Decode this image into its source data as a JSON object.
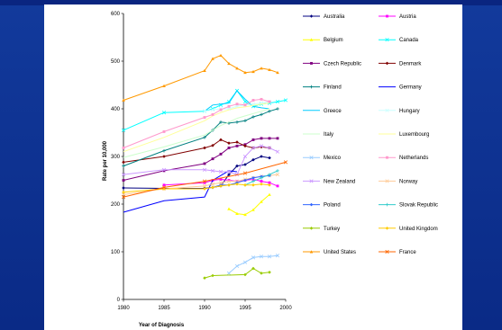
{
  "chart_data": {
    "type": "line",
    "title": "",
    "xlabel": "Year of Diagnosis",
    "ylabel": "Rate per 10,000",
    "xlim": [
      1980,
      2000
    ],
    "ylim": [
      0,
      600
    ],
    "x_ticks": [
      "1980",
      "1985",
      "1990",
      "1995",
      "2000"
    ],
    "y_ticks": [
      "0",
      "100",
      "200",
      "300",
      "400",
      "500",
      "600"
    ],
    "grid": false,
    "legend_position": "right",
    "series": [
      {
        "name": "Australia",
        "color": "#000080",
        "marker": "diamond",
        "points": [
          [
            1980,
            234
          ],
          [
            1985,
            233
          ],
          [
            1990,
            233
          ],
          [
            1991,
            235
          ],
          [
            1992,
            238
          ],
          [
            1993,
            262
          ],
          [
            1994,
            280
          ],
          [
            1995,
            283
          ],
          [
            1996,
            293
          ],
          [
            1997,
            300
          ],
          [
            1998,
            297
          ]
        ]
      },
      {
        "name": "Austria",
        "color": "#ff00ff",
        "marker": "square",
        "points": [
          [
            1985,
            240
          ],
          [
            1990,
            245
          ],
          [
            1991,
            250
          ],
          [
            1992,
            252
          ],
          [
            1993,
            250
          ],
          [
            1994,
            248
          ],
          [
            1995,
            250
          ],
          [
            1996,
            252
          ],
          [
            1997,
            248
          ],
          [
            1998,
            245
          ],
          [
            1999,
            238
          ]
        ]
      },
      {
        "name": "Belgium",
        "color": "#ffff00",
        "marker": "triangle",
        "points": [
          [
            1993,
            190
          ],
          [
            1994,
            180
          ],
          [
            1995,
            178
          ],
          [
            1996,
            188
          ],
          [
            1997,
            205
          ],
          [
            1998,
            220
          ]
        ]
      },
      {
        "name": "Canada",
        "color": "#00ffff",
        "marker": "x",
        "points": [
          [
            1980,
            355
          ],
          [
            1985,
            392
          ],
          [
            1990,
            395
          ],
          [
            1991,
            400
          ],
          [
            1992,
            408
          ],
          [
            1993,
            415
          ],
          [
            1994,
            438
          ],
          [
            1995,
            415
          ],
          [
            1996,
            405
          ],
          [
            1997,
            410
          ],
          [
            1998,
            412
          ],
          [
            1999,
            415
          ],
          [
            2000,
            418
          ]
        ]
      },
      {
        "name": "Czech Republic",
        "color": "#800080",
        "marker": "square",
        "points": [
          [
            1980,
            250
          ],
          [
            1985,
            270
          ],
          [
            1990,
            285
          ],
          [
            1991,
            295
          ],
          [
            1992,
            305
          ],
          [
            1993,
            318
          ],
          [
            1994,
            322
          ],
          [
            1995,
            325
          ],
          [
            1996,
            335
          ],
          [
            1997,
            338
          ],
          [
            1998,
            338
          ],
          [
            1999,
            338
          ]
        ]
      },
      {
        "name": "Denmark",
        "color": "#800000",
        "marker": "diamond",
        "points": [
          [
            1980,
            288
          ],
          [
            1985,
            300
          ],
          [
            1990,
            318
          ],
          [
            1991,
            323
          ],
          [
            1992,
            335
          ],
          [
            1993,
            328
          ],
          [
            1994,
            330
          ],
          [
            1995,
            322
          ],
          [
            1996,
            318
          ],
          [
            1997,
            320
          ],
          [
            1998,
            318
          ]
        ]
      },
      {
        "name": "Finland",
        "color": "#008080",
        "marker": "plus",
        "points": [
          [
            1980,
            280
          ],
          [
            1985,
            312
          ],
          [
            1990,
            340
          ],
          [
            1991,
            355
          ],
          [
            1992,
            372
          ],
          [
            1993,
            370
          ],
          [
            1994,
            372
          ],
          [
            1995,
            375
          ],
          [
            1996,
            383
          ],
          [
            1997,
            388
          ],
          [
            1998,
            395
          ],
          [
            1999,
            400
          ]
        ]
      },
      {
        "name": "Germany",
        "color": "#0000ff",
        "marker": "none",
        "points": [
          [
            1980,
            183
          ],
          [
            1985,
            207
          ],
          [
            1990,
            215
          ],
          [
            1991,
            250
          ],
          [
            1992,
            260
          ],
          [
            1993,
            270
          ],
          [
            1994,
            268
          ]
        ]
      },
      {
        "name": "Greece",
        "color": "#00ccff",
        "marker": "none",
        "points": [
          [
            1990,
            395
          ],
          [
            1991,
            408
          ],
          [
            1992,
            410
          ],
          [
            1993,
            412
          ],
          [
            1994,
            438
          ],
          [
            1995,
            420
          ],
          [
            1996,
            405
          ],
          [
            1997,
            402
          ],
          [
            1998,
            400
          ]
        ]
      },
      {
        "name": "Hungary",
        "color": "#ccffff",
        "marker": "x",
        "points": [
          [
            1990,
            395
          ],
          [
            1991,
            398
          ],
          [
            1992,
            400
          ],
          [
            1993,
            400
          ],
          [
            1994,
            405
          ],
          [
            1995,
            408
          ],
          [
            1996,
            410
          ],
          [
            1997,
            412
          ],
          [
            1998,
            415
          ]
        ]
      },
      {
        "name": "Italy",
        "color": "#ccffcc",
        "marker": "none",
        "points": [
          [
            1980,
            298
          ],
          [
            1985,
            320
          ],
          [
            1990,
            345
          ],
          [
            1991,
            355
          ],
          [
            1992,
            365
          ],
          [
            1993,
            372
          ],
          [
            1994,
            380
          ],
          [
            1995,
            385
          ],
          [
            1996,
            390
          ],
          [
            1997,
            395
          ],
          [
            1998,
            400
          ]
        ]
      },
      {
        "name": "Luxembourg",
        "color": "#ffff99",
        "marker": "none",
        "points": [
          [
            1980,
            310
          ],
          [
            1985,
            340
          ],
          [
            1990,
            375
          ],
          [
            1991,
            385
          ],
          [
            1992,
            392
          ],
          [
            1993,
            398
          ],
          [
            1994,
            402
          ],
          [
            1995,
            404
          ],
          [
            1996,
            407
          ],
          [
            1997,
            410
          ],
          [
            1998,
            412
          ]
        ]
      },
      {
        "name": "Mexico",
        "color": "#99ccff",
        "marker": "x",
        "points": [
          [
            1993,
            55
          ],
          [
            1994,
            70
          ],
          [
            1995,
            78
          ],
          [
            1996,
            88
          ],
          [
            1997,
            90
          ],
          [
            1998,
            90
          ],
          [
            1999,
            92
          ]
        ]
      },
      {
        "name": "Netherlands",
        "color": "#ff99cc",
        "marker": "square",
        "points": [
          [
            1980,
            318
          ],
          [
            1985,
            352
          ],
          [
            1990,
            382
          ],
          [
            1991,
            388
          ],
          [
            1992,
            398
          ],
          [
            1993,
            405
          ],
          [
            1994,
            410
          ],
          [
            1995,
            408
          ],
          [
            1996,
            418
          ],
          [
            1997,
            420
          ],
          [
            1998,
            415
          ]
        ]
      },
      {
        "name": "New Zealand",
        "color": "#cc99ff",
        "marker": "x",
        "points": [
          [
            1980,
            262
          ],
          [
            1985,
            272
          ],
          [
            1990,
            272
          ],
          [
            1991,
            270
          ],
          [
            1992,
            268
          ],
          [
            1993,
            268
          ],
          [
            1994,
            262
          ],
          [
            1995,
            300
          ],
          [
            1996,
            318
          ],
          [
            1997,
            322
          ],
          [
            1998,
            318
          ],
          [
            1999,
            310
          ]
        ]
      },
      {
        "name": "Norway",
        "color": "#ffcc99",
        "marker": "x",
        "points": [
          [
            1980,
            220
          ],
          [
            1985,
            232
          ],
          [
            1990,
            238
          ],
          [
            1991,
            242
          ],
          [
            1992,
            245
          ],
          [
            1993,
            248
          ],
          [
            1994,
            248
          ],
          [
            1995,
            252
          ],
          [
            1996,
            255
          ],
          [
            1997,
            258
          ],
          [
            1998,
            260
          ],
          [
            1999,
            262
          ]
        ]
      },
      {
        "name": "Poland",
        "color": "#3366ff",
        "marker": "diamond",
        "points": [
          [
            1991,
            235
          ],
          [
            1992,
            240
          ],
          [
            1993,
            240
          ],
          [
            1994,
            245
          ],
          [
            1995,
            250
          ],
          [
            1996,
            255
          ],
          [
            1997,
            258
          ],
          [
            1998,
            260
          ]
        ]
      },
      {
        "name": "Slovak Republic",
        "color": "#33cccc",
        "marker": "plus",
        "points": [
          [
            1995,
            240
          ],
          [
            1996,
            248
          ],
          [
            1997,
            255
          ],
          [
            1998,
            262
          ],
          [
            1999,
            270
          ]
        ]
      },
      {
        "name": "Turkey",
        "color": "#99cc00",
        "marker": "diamond",
        "points": [
          [
            1990,
            45
          ],
          [
            1991,
            50
          ],
          [
            1995,
            52
          ],
          [
            1996,
            65
          ],
          [
            1997,
            55
          ],
          [
            1998,
            57
          ]
        ]
      },
      {
        "name": "United Kingdom",
        "color": "#ffcc00",
        "marker": "diamond",
        "points": [
          [
            1980,
            225
          ],
          [
            1985,
            232
          ],
          [
            1990,
            232
          ],
          [
            1991,
            235
          ],
          [
            1992,
            238
          ],
          [
            1993,
            240
          ],
          [
            1994,
            242
          ],
          [
            1995,
            240
          ],
          [
            1996,
            240
          ],
          [
            1997,
            242
          ],
          [
            1998,
            240
          ]
        ]
      },
      {
        "name": "United States",
        "color": "#ff9900",
        "marker": "triangle",
        "points": [
          [
            1980,
            418
          ],
          [
            1985,
            448
          ],
          [
            1990,
            480
          ],
          [
            1991,
            505
          ],
          [
            1992,
            512
          ],
          [
            1993,
            495
          ],
          [
            1994,
            485
          ],
          [
            1995,
            476
          ],
          [
            1996,
            478
          ],
          [
            1997,
            485
          ],
          [
            1998,
            482
          ],
          [
            1999,
            476
          ]
        ]
      },
      {
        "name": "France",
        "color": "#ff6600",
        "marker": "x",
        "points": [
          [
            1980,
            215
          ],
          [
            1985,
            235
          ],
          [
            1990,
            248
          ],
          [
            1995,
            265
          ],
          [
            2000,
            288
          ]
        ]
      }
    ]
  }
}
